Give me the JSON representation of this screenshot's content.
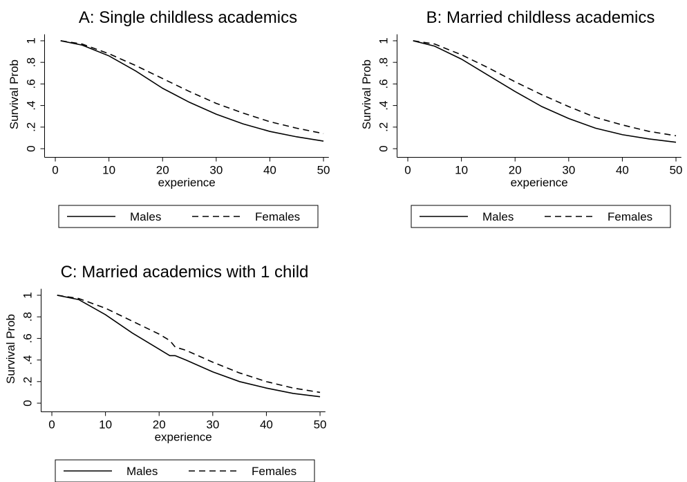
{
  "chart_data": [
    {
      "type": "line",
      "title": "A: Single childless academics",
      "xlabel": "experience",
      "ylabel": "Survival Prob",
      "x": [
        1,
        5,
        10,
        15,
        20,
        25,
        30,
        35,
        40,
        45,
        50
      ],
      "series": [
        {
          "name": "Males",
          "color": "#000000",
          "line_style": "solid",
          "values": [
            1,
            0.96,
            0.86,
            0.72,
            0.56,
            0.43,
            0.32,
            0.23,
            0.16,
            0.11,
            0.07
          ]
        },
        {
          "name": "Females",
          "color": "#000000",
          "line_style": "dashed",
          "values": [
            1,
            0.97,
            0.88,
            0.77,
            0.65,
            0.53,
            0.42,
            0.33,
            0.25,
            0.19,
            0.14
          ]
        }
      ],
      "xlim": [
        -2,
        51
      ],
      "xticks": [
        0,
        10,
        20,
        30,
        40,
        50
      ],
      "ylim": [
        -0.08,
        1.06
      ],
      "yticks": [
        0,
        {
          "value": 0.2,
          "label": ".2"
        },
        {
          "value": 0.4,
          "label": ".4"
        },
        {
          "value": 0.6,
          "label": ".6"
        },
        {
          "value": 0.8,
          "label": ".8"
        },
        1
      ],
      "grid": false
    },
    {
      "type": "line",
      "title": "B: Married childless academics",
      "xlabel": "experience",
      "ylabel": "Survival Prob",
      "x": [
        1,
        5,
        10,
        15,
        20,
        25,
        30,
        35,
        40,
        45,
        50
      ],
      "series": [
        {
          "name": "Males",
          "color": "#000000",
          "line_style": "solid",
          "values": [
            1,
            0.95,
            0.83,
            0.68,
            0.53,
            0.39,
            0.28,
            0.19,
            0.13,
            0.09,
            0.06
          ]
        },
        {
          "name": "Females",
          "color": "#000000",
          "line_style": "dashed",
          "values": [
            1,
            0.97,
            0.87,
            0.75,
            0.62,
            0.5,
            0.39,
            0.29,
            0.22,
            0.16,
            0.12
          ]
        }
      ],
      "xlim": [
        -2,
        51
      ],
      "xticks": [
        0,
        10,
        20,
        30,
        40,
        50
      ],
      "ylim": [
        -0.08,
        1.06
      ],
      "yticks": [
        0,
        {
          "value": 0.2,
          "label": ".2"
        },
        {
          "value": 0.4,
          "label": ".4"
        },
        {
          "value": 0.6,
          "label": ".6"
        },
        {
          "value": 0.8,
          "label": ".8"
        },
        1
      ],
      "grid": false
    },
    {
      "type": "line",
      "title": "C: Married academics with 1 child",
      "xlabel": "experience",
      "ylabel": "Survival Prob",
      "x": [
        1,
        5,
        10,
        15,
        20,
        22,
        23,
        25,
        30,
        35,
        40,
        45,
        50
      ],
      "series": [
        {
          "name": "Males",
          "color": "#000000",
          "line_style": "solid",
          "values": [
            1,
            0.96,
            0.82,
            0.65,
            0.5,
            0.44,
            0.44,
            0.4,
            0.29,
            0.2,
            0.14,
            0.09,
            0.06
          ]
        },
        {
          "name": "Females",
          "color": "#000000",
          "line_style": "dashed",
          "values": [
            1,
            0.97,
            0.88,
            0.76,
            0.64,
            0.58,
            0.52,
            0.49,
            0.38,
            0.28,
            0.2,
            0.14,
            0.1
          ]
        }
      ],
      "xlim": [
        -2,
        51
      ],
      "xticks": [
        0,
        10,
        20,
        30,
        40,
        50
      ],
      "ylim": [
        -0.08,
        1.06
      ],
      "yticks": [
        0,
        {
          "value": 0.2,
          "label": ".2"
        },
        {
          "value": 0.4,
          "label": ".4"
        },
        {
          "value": 0.6,
          "label": ".6"
        },
        {
          "value": 0.8,
          "label": ".8"
        },
        1
      ],
      "grid": false
    }
  ]
}
